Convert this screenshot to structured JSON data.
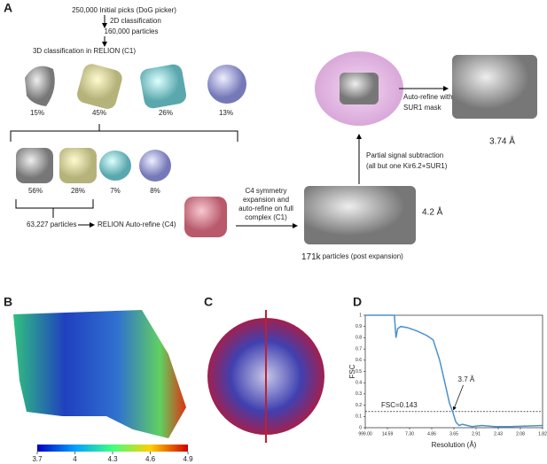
{
  "panels": {
    "A": {
      "label": "A",
      "steps": [
        "250,000 Initial picks (DoG picker)",
        "2D classification",
        "160,000 particles",
        "3D classification in RELION (C1)",
        "63,227 particles",
        "RELION Auto-refine (C4)"
      ],
      "round1": [
        "15%",
        "45%",
        "26%",
        "13%"
      ],
      "round2": [
        "56%",
        "28%",
        "7%",
        "8%"
      ],
      "expansion": [
        "C4 symmetry",
        "expansion  and",
        "auto-refine on full",
        "complex (C1)"
      ],
      "res_full": "4.2 Å",
      "count_post": "171k",
      "post_text": "particles (post expansion)",
      "subtraction": [
        "Partial signal subtraction",
        "(all but one Kir6.2+SUR1)"
      ],
      "autorefine": [
        "Auto-refine with",
        "SUR1 mask"
      ],
      "res_final": "3.74 Å"
    },
    "B": {
      "label": "B",
      "colorbar": {
        "lim": [
          3.7,
          4.9
        ],
        "ticks": [
          3.7,
          4,
          4.3,
          4.6,
          4.9
        ]
      }
    },
    "C": {
      "label": "C"
    },
    "D": {
      "label": "D"
    }
  },
  "chart_data": {
    "type": "line",
    "xlabel": "Resolution (Å)",
    "ylabel": "FSC",
    "x": [
      0,
      0.04,
      0.09,
      0.095,
      0.1,
      0.11,
      0.13,
      0.16,
      0.19,
      0.21,
      0.23,
      0.25,
      0.26,
      0.27,
      0.28,
      0.29,
      0.3,
      0.33,
      0.36,
      0.4,
      0.45,
      0.5,
      0.548
    ],
    "series": [
      {
        "name": "FSC",
        "color": "#4a90d0",
        "values": [
          1,
          1,
          1,
          0.8,
          0.88,
          0.9,
          0.89,
          0.86,
          0.82,
          0.78,
          0.6,
          0.35,
          0.22,
          0.143,
          0.05,
          0.02,
          0.03,
          0.01,
          0.02,
          0.01,
          0.01,
          0.015,
          0.02
        ]
      }
    ],
    "xlim": [
      0,
      0.548
    ],
    "xticks": [
      {
        "value": 0,
        "label": "999.00"
      },
      {
        "value": 0.0685,
        "label": "14.59"
      },
      {
        "value": 0.137,
        "label": "7.30"
      },
      {
        "value": 0.2055,
        "label": "4.86"
      },
      {
        "value": 0.274,
        "label": "3.65"
      },
      {
        "value": 0.3425,
        "label": "2.91"
      },
      {
        "value": 0.411,
        "label": "2.43"
      },
      {
        "value": 0.4795,
        "label": "2.08"
      },
      {
        "value": 0.548,
        "label": "1.82"
      }
    ],
    "ylim": [
      0,
      1
    ],
    "yticks": [
      0,
      0.1,
      0.2,
      0.3,
      0.4,
      0.5,
      0.6,
      0.7,
      0.8,
      0.9,
      1
    ],
    "threshold": 0.143,
    "threshold_label": "FSC=0.143",
    "annotation": "3.7 Å"
  }
}
